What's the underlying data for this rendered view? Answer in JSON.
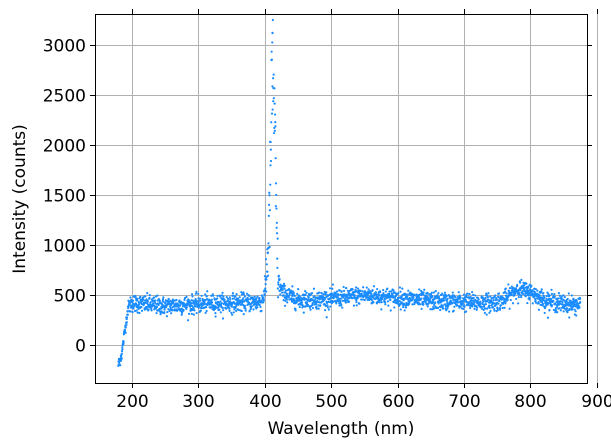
{
  "chart_data": {
    "type": "scatter",
    "title": "",
    "xlabel": "Wavelength (nm)",
    "ylabel": "Intensity (counts)",
    "xlim": [
      145,
      885
    ],
    "ylim": [
      -380,
      3310
    ],
    "xticks": [
      200,
      300,
      400,
      500,
      600,
      700,
      800,
      900
    ],
    "yticks": [
      0,
      500,
      1000,
      1500,
      2000,
      2500,
      3000
    ],
    "xtick_labels": [
      "200",
      "300",
      "400",
      "500",
      "600",
      "700",
      "800",
      "900"
    ],
    "ytick_labels": [
      "0",
      "500",
      "1000",
      "1500",
      "2000",
      "2500",
      "3000"
    ],
    "grid": true,
    "marker_color": "#1a8cff",
    "x_range": [
      180,
      875
    ],
    "peak": {
      "x": 412,
      "y": 3120
    },
    "baseline_profile": [
      [
        180,
        -200
      ],
      [
        185,
        -100
      ],
      [
        190,
        150
      ],
      [
        195,
        380
      ],
      [
        200,
        420
      ],
      [
        250,
        390
      ],
      [
        300,
        410
      ],
      [
        350,
        420
      ],
      [
        395,
        430
      ],
      [
        400,
        500
      ],
      [
        405,
        900
      ],
      [
        408,
        1400
      ],
      [
        410,
        2200
      ],
      [
        412,
        2750
      ],
      [
        414,
        2500
      ],
      [
        416,
        1900
      ],
      [
        418,
        1200
      ],
      [
        420,
        700
      ],
      [
        423,
        580
      ],
      [
        428,
        520
      ],
      [
        450,
        450
      ],
      [
        500,
        460
      ],
      [
        550,
        500
      ],
      [
        600,
        470
      ],
      [
        650,
        440
      ],
      [
        700,
        430
      ],
      [
        740,
        420
      ],
      [
        760,
        450
      ],
      [
        780,
        560
      ],
      [
        800,
        530
      ],
      [
        820,
        450
      ],
      [
        850,
        410
      ],
      [
        875,
        400
      ]
    ],
    "noise_amplitude": 45
  }
}
